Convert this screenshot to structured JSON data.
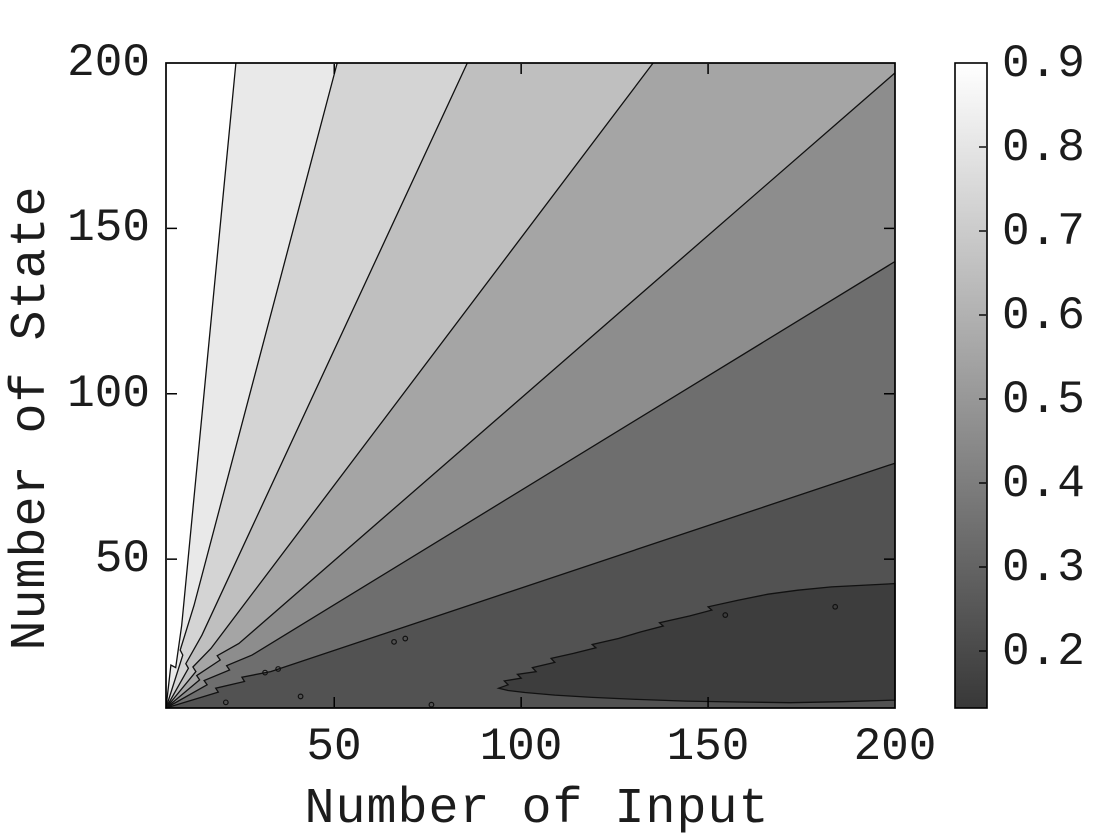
{
  "figure": {
    "background": "#ffffff"
  },
  "chart_data": {
    "type": "contourf",
    "title": "",
    "xlabel": "Number of Input",
    "ylabel": "Number of State",
    "x_range": [
      5,
      200
    ],
    "y_range": [
      5,
      200
    ],
    "x_ticks": [
      50,
      100,
      150,
      200
    ],
    "y_ticks": [
      50,
      100,
      150,
      200
    ],
    "grid": false,
    "legend": "none",
    "colormap": "gray",
    "levels": [
      0.2,
      0.3,
      0.4,
      0.5,
      0.6,
      0.7,
      0.8,
      0.9
    ],
    "origin_point": [
      5,
      5
    ],
    "band_colors": [
      "#ffffff",
      "#e9e9e9",
      "#d4d4d4",
      "#bfbfbf",
      "#a5a5a5",
      "#8d8d8d",
      "#6e6e6e",
      "#525252"
    ],
    "line_color": "#111111",
    "boundaries": [
      {
        "level": 0.9,
        "type": "top",
        "points": [
          [
            5,
            5
          ],
          [
            6.3,
            18
          ],
          [
            7.6,
            17.2
          ],
          [
            9.2,
            30
          ],
          [
            23.7,
            200
          ]
        ]
      },
      {
        "level": 0.8,
        "type": "top",
        "points": [
          [
            5,
            5
          ],
          [
            9.5,
            21
          ],
          [
            8.8,
            22.5
          ],
          [
            12.5,
            36
          ],
          [
            50.8,
            200
          ]
        ]
      },
      {
        "level": 0.7,
        "type": "top",
        "points": [
          [
            5,
            5
          ],
          [
            11,
            17
          ],
          [
            10.3,
            18.4
          ],
          [
            14.6,
            27
          ],
          [
            85.6,
            200
          ]
        ]
      },
      {
        "level": 0.6,
        "type": "top",
        "points": [
          [
            5,
            5
          ],
          [
            13,
            16
          ],
          [
            12.2,
            17.4
          ],
          [
            17,
            23
          ],
          [
            135.3,
            200
          ]
        ]
      },
      {
        "level": 0.5,
        "type": "right",
        "points": [
          [
            5,
            5
          ],
          [
            14,
            13.5
          ],
          [
            13.2,
            14.8
          ],
          [
            19.5,
            19.5
          ],
          [
            18.7,
            20.8
          ],
          [
            24.5,
            24.5
          ],
          [
            200,
            197
          ]
        ]
      },
      {
        "level": 0.4,
        "type": "right",
        "points": [
          [
            5,
            5
          ],
          [
            16,
            12
          ],
          [
            15.2,
            13.3
          ],
          [
            22,
            16.5
          ],
          [
            21.2,
            17.8
          ],
          [
            28,
            21
          ],
          [
            200,
            140
          ]
        ]
      },
      {
        "level": 0.3,
        "type": "right",
        "points": [
          [
            5,
            5
          ],
          [
            19,
            9.8
          ],
          [
            18.3,
            11
          ],
          [
            26,
            13
          ],
          [
            25.3,
            14.3
          ],
          [
            33,
            16
          ],
          [
            200,
            79
          ]
        ]
      }
    ],
    "low_region": {
      "level": 0.2,
      "color": "#3d3d3d",
      "points": [
        [
          94,
          11
        ],
        [
          96.5,
          12
        ],
        [
          95.5,
          13.2
        ],
        [
          100,
          14
        ],
        [
          99,
          15.2
        ],
        [
          104,
          16
        ],
        [
          103,
          17.2
        ],
        [
          109,
          18.8
        ],
        [
          108,
          20
        ],
        [
          114,
          21.5
        ],
        [
          120,
          23.2
        ],
        [
          119,
          24.2
        ],
        [
          126,
          26
        ],
        [
          132,
          28
        ],
        [
          138,
          29.8
        ],
        [
          137,
          30.8
        ],
        [
          145,
          32.8
        ],
        [
          151,
          34.6
        ],
        [
          150,
          35.6
        ],
        [
          158,
          37.6
        ],
        [
          166,
          39.4
        ],
        [
          174,
          40.6
        ],
        [
          183,
          41.6
        ],
        [
          200,
          42.6
        ],
        [
          200,
          7.4
        ],
        [
          186,
          6.9
        ],
        [
          172,
          6.6
        ],
        [
          158,
          6.8
        ],
        [
          144,
          7.1
        ],
        [
          131,
          7.6
        ],
        [
          119,
          8.2
        ],
        [
          109,
          8.9
        ],
        [
          101,
          9.7
        ],
        [
          96.5,
          10.3
        ]
      ]
    },
    "speckles": [
      [
        21,
        6.7
      ],
      [
        31.5,
        15.7
      ],
      [
        35,
        16.8
      ],
      [
        41,
        8.5
      ],
      [
        66,
        25
      ],
      [
        69,
        26
      ],
      [
        76,
        6
      ],
      [
        154.6,
        33.1
      ],
      [
        184,
        35.6
      ]
    ],
    "colorbar": {
      "ticks": [
        0.9,
        0.8,
        0.7,
        0.6,
        0.5,
        0.4,
        0.3,
        0.2
      ],
      "top_value": 0.9,
      "bottom_value": 0.132,
      "top_color": "#ffffff",
      "bottom_color": "#383838"
    }
  }
}
